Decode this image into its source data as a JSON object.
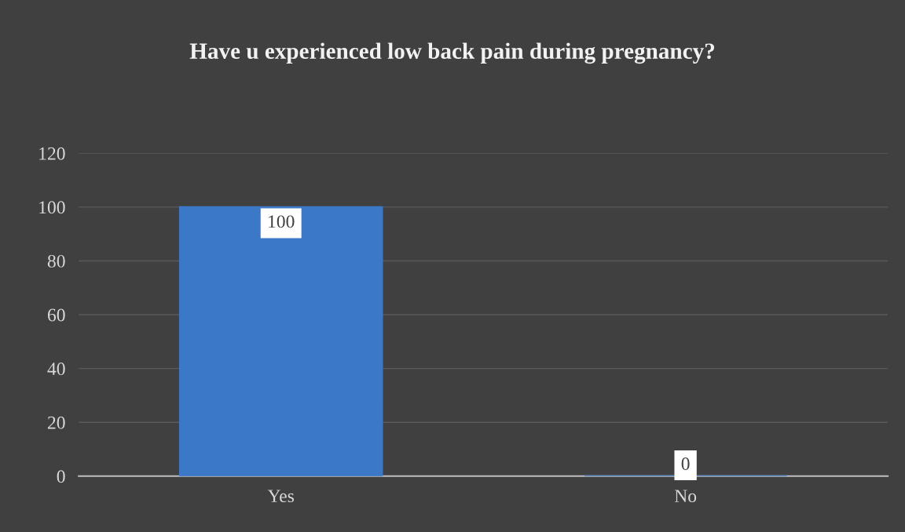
{
  "chart_data": {
    "type": "bar",
    "title": "Have u experienced low back pain during pregnancy?",
    "categories": [
      "Yes",
      "No"
    ],
    "series": [
      {
        "color": "#3b78c8",
        "values": [
          100,
          0
        ]
      }
    ],
    "ylim": [
      0,
      120
    ],
    "yticks": [
      0,
      20,
      40,
      60,
      80,
      100,
      120
    ],
    "grid": "y",
    "data_labels": true,
    "legend": false
  }
}
